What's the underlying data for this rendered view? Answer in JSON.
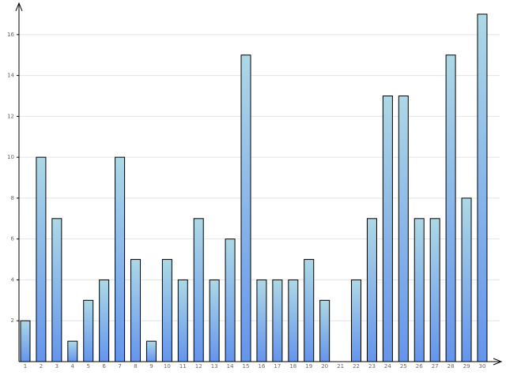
{
  "chart_data": {
    "type": "bar",
    "categories": [
      "1",
      "2",
      "3",
      "4",
      "5",
      "6",
      "7",
      "8",
      "9",
      "10",
      "11",
      "12",
      "13",
      "14",
      "15",
      "16",
      "17",
      "18",
      "19",
      "20",
      "21",
      "22",
      "23",
      "24",
      "25",
      "26",
      "27",
      "28",
      "29",
      "30"
    ],
    "values": [
      2,
      10,
      7,
      1,
      3,
      4,
      10,
      5,
      1,
      5,
      4,
      7,
      4,
      6,
      15,
      4,
      4,
      4,
      5,
      3,
      0,
      4,
      7,
      13,
      13,
      7,
      7,
      15,
      8,
      17
    ],
    "colors": [
      "#add8e6",
      "#6495ed"
    ],
    "ylim": [
      0,
      17.5
    ],
    "yticks": [
      2,
      4,
      6,
      8,
      10,
      12,
      14,
      16
    ],
    "grid": true
  }
}
